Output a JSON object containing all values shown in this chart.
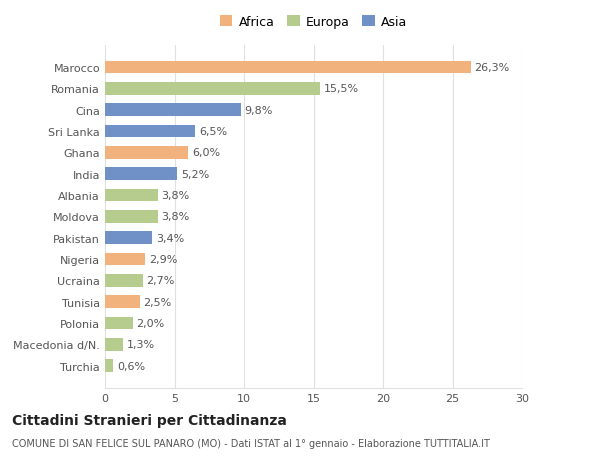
{
  "categories": [
    "Turchia",
    "Macedonia d/N.",
    "Polonia",
    "Tunisia",
    "Ucraina",
    "Nigeria",
    "Pakistan",
    "Moldova",
    "Albania",
    "India",
    "Ghana",
    "Sri Lanka",
    "Cina",
    "Romania",
    "Marocco"
  ],
  "values": [
    0.6,
    1.3,
    2.0,
    2.5,
    2.7,
    2.9,
    3.4,
    3.8,
    3.8,
    5.2,
    6.0,
    6.5,
    9.8,
    15.5,
    26.3
  ],
  "labels": [
    "0,6%",
    "1,3%",
    "2,0%",
    "2,5%",
    "2,7%",
    "2,9%",
    "3,4%",
    "3,8%",
    "3,8%",
    "5,2%",
    "6,0%",
    "6,5%",
    "9,8%",
    "15,5%",
    "26,3%"
  ],
  "continents": [
    "Europa",
    "Europa",
    "Europa",
    "Africa",
    "Europa",
    "Africa",
    "Asia",
    "Europa",
    "Europa",
    "Asia",
    "Africa",
    "Asia",
    "Asia",
    "Europa",
    "Africa"
  ],
  "colors": {
    "Africa": "#F2B27E",
    "Europa": "#B5CC8E",
    "Asia": "#7090C8"
  },
  "legend_labels": [
    "Africa",
    "Europa",
    "Asia"
  ],
  "legend_colors": [
    "#F2B27E",
    "#B5CC8E",
    "#7090C8"
  ],
  "title": "Cittadini Stranieri per Cittadinanza",
  "subtitle": "COMUNE DI SAN FELICE SUL PANARO (MO) - Dati ISTAT al 1° gennaio - Elaborazione TUTTITALIA.IT",
  "xlim": [
    0,
    30
  ],
  "xticks": [
    0,
    5,
    10,
    15,
    20,
    25,
    30
  ],
  "background_color": "#ffffff",
  "plot_bg_color": "#ffffff",
  "grid_color": "#e0e0e0",
  "bar_height": 0.6,
  "label_fontsize": 8,
  "tick_fontsize": 8,
  "ytick_fontsize": 8,
  "title_fontsize": 10,
  "subtitle_fontsize": 7,
  "legend_fontsize": 9
}
